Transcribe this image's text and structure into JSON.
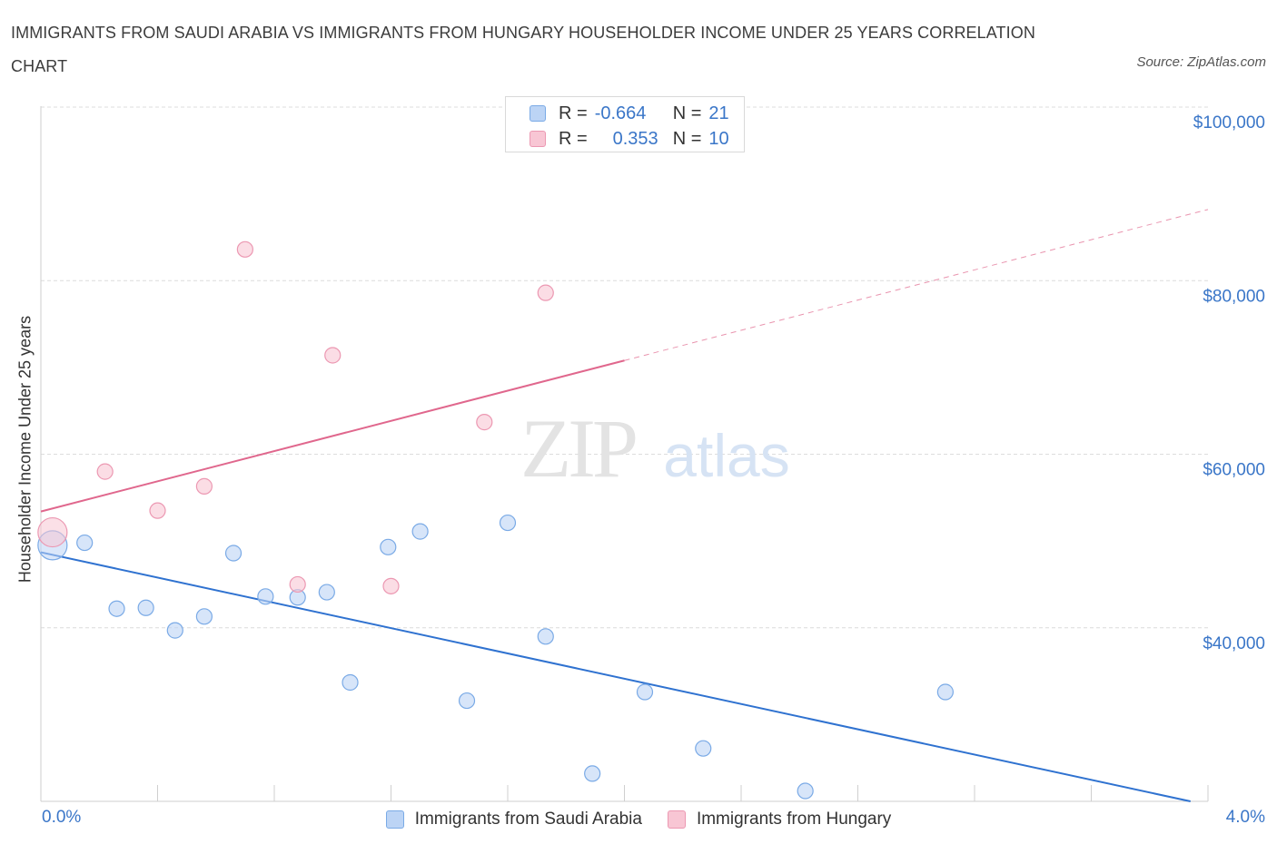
{
  "title": "IMMIGRANTS FROM SAUDI ARABIA VS IMMIGRANTS FROM HUNGARY HOUSEHOLDER INCOME UNDER 25 YEARS CORRELATION CHART",
  "source": "Source: ZipAtlas.com",
  "watermark": {
    "zip": "ZIP",
    "atlas": "atlas"
  },
  "colors": {
    "blue_fill": "#bcd4f5",
    "blue_stroke": "#7aaae6",
    "blue_line": "#2f72d0",
    "pink_fill": "#f8c6d4",
    "pink_stroke": "#ec98b2",
    "pink_line": "#e0678d",
    "axis_text": "#3a76c8",
    "grid": "#dcdcdc"
  },
  "legend_top": [
    {
      "r_label": "R =",
      "r_value": "-0.664",
      "n_label": "N =",
      "n_value": "21"
    },
    {
      "r_label": "R =",
      "r_value": "0.353",
      "n_label": "N =",
      "n_value": "10"
    }
  ],
  "chart_data": {
    "type": "scatter",
    "title": "IMMIGRANTS FROM SAUDI ARABIA VS IMMIGRANTS FROM HUNGARY HOUSEHOLDER INCOME UNDER 25 YEARS CORRELATION CHART",
    "xlabel": "",
    "ylabel": "Householder Income Under 25 years",
    "xlim": [
      0,
      4
    ],
    "ylim": [
      20000,
      100000
    ],
    "x_tick_labels": [
      "0.0%",
      "4.0%"
    ],
    "y_ticks": [
      {
        "value": 40000,
        "label": "$40,000"
      },
      {
        "value": 60000,
        "label": "$60,000"
      },
      {
        "value": 80000,
        "label": "$80,000"
      },
      {
        "value": 100000,
        "label": "$100,000"
      }
    ],
    "grid": true,
    "legend_position": "bottom",
    "series": [
      {
        "name": "Immigrants from Saudi Arabia",
        "color": "#bcd4f5",
        "points": [
          {
            "x": 0.04,
            "y": 49500,
            "big": true
          },
          {
            "x": 0.15,
            "y": 49800
          },
          {
            "x": 0.26,
            "y": 42200
          },
          {
            "x": 0.36,
            "y": 42300
          },
          {
            "x": 0.46,
            "y": 39700
          },
          {
            "x": 0.56,
            "y": 41300
          },
          {
            "x": 0.66,
            "y": 48600
          },
          {
            "x": 0.77,
            "y": 43600
          },
          {
            "x": 0.88,
            "y": 43500
          },
          {
            "x": 0.98,
            "y": 44100
          },
          {
            "x": 1.06,
            "y": 33700
          },
          {
            "x": 1.19,
            "y": 49300
          },
          {
            "x": 1.3,
            "y": 51100
          },
          {
            "x": 1.46,
            "y": 31600
          },
          {
            "x": 1.6,
            "y": 52100
          },
          {
            "x": 1.73,
            "y": 39000
          },
          {
            "x": 1.89,
            "y": 23200
          },
          {
            "x": 2.07,
            "y": 32600
          },
          {
            "x": 2.27,
            "y": 26100
          },
          {
            "x": 2.62,
            "y": 21200
          },
          {
            "x": 3.1,
            "y": 32600
          }
        ],
        "trend": {
          "x0": 0.0,
          "y0": 48700,
          "x1": 3.94,
          "y1": 20000,
          "dashed_from": null
        }
      },
      {
        "name": "Immigrants from Hungary",
        "color": "#f8c6d4",
        "points": [
          {
            "x": 0.04,
            "y": 51000,
            "big": true
          },
          {
            "x": 0.22,
            "y": 58000
          },
          {
            "x": 0.4,
            "y": 53500
          },
          {
            "x": 0.56,
            "y": 56300
          },
          {
            "x": 0.7,
            "y": 83600
          },
          {
            "x": 0.88,
            "y": 45000
          },
          {
            "x": 1.0,
            "y": 71400
          },
          {
            "x": 1.2,
            "y": 44800
          },
          {
            "x": 1.52,
            "y": 63700
          },
          {
            "x": 1.73,
            "y": 78600
          }
        ],
        "trend": {
          "x0": 0.0,
          "y0": 53400,
          "x1": 4.0,
          "y1": 88200,
          "dashed_from": 2.0
        }
      }
    ]
  }
}
